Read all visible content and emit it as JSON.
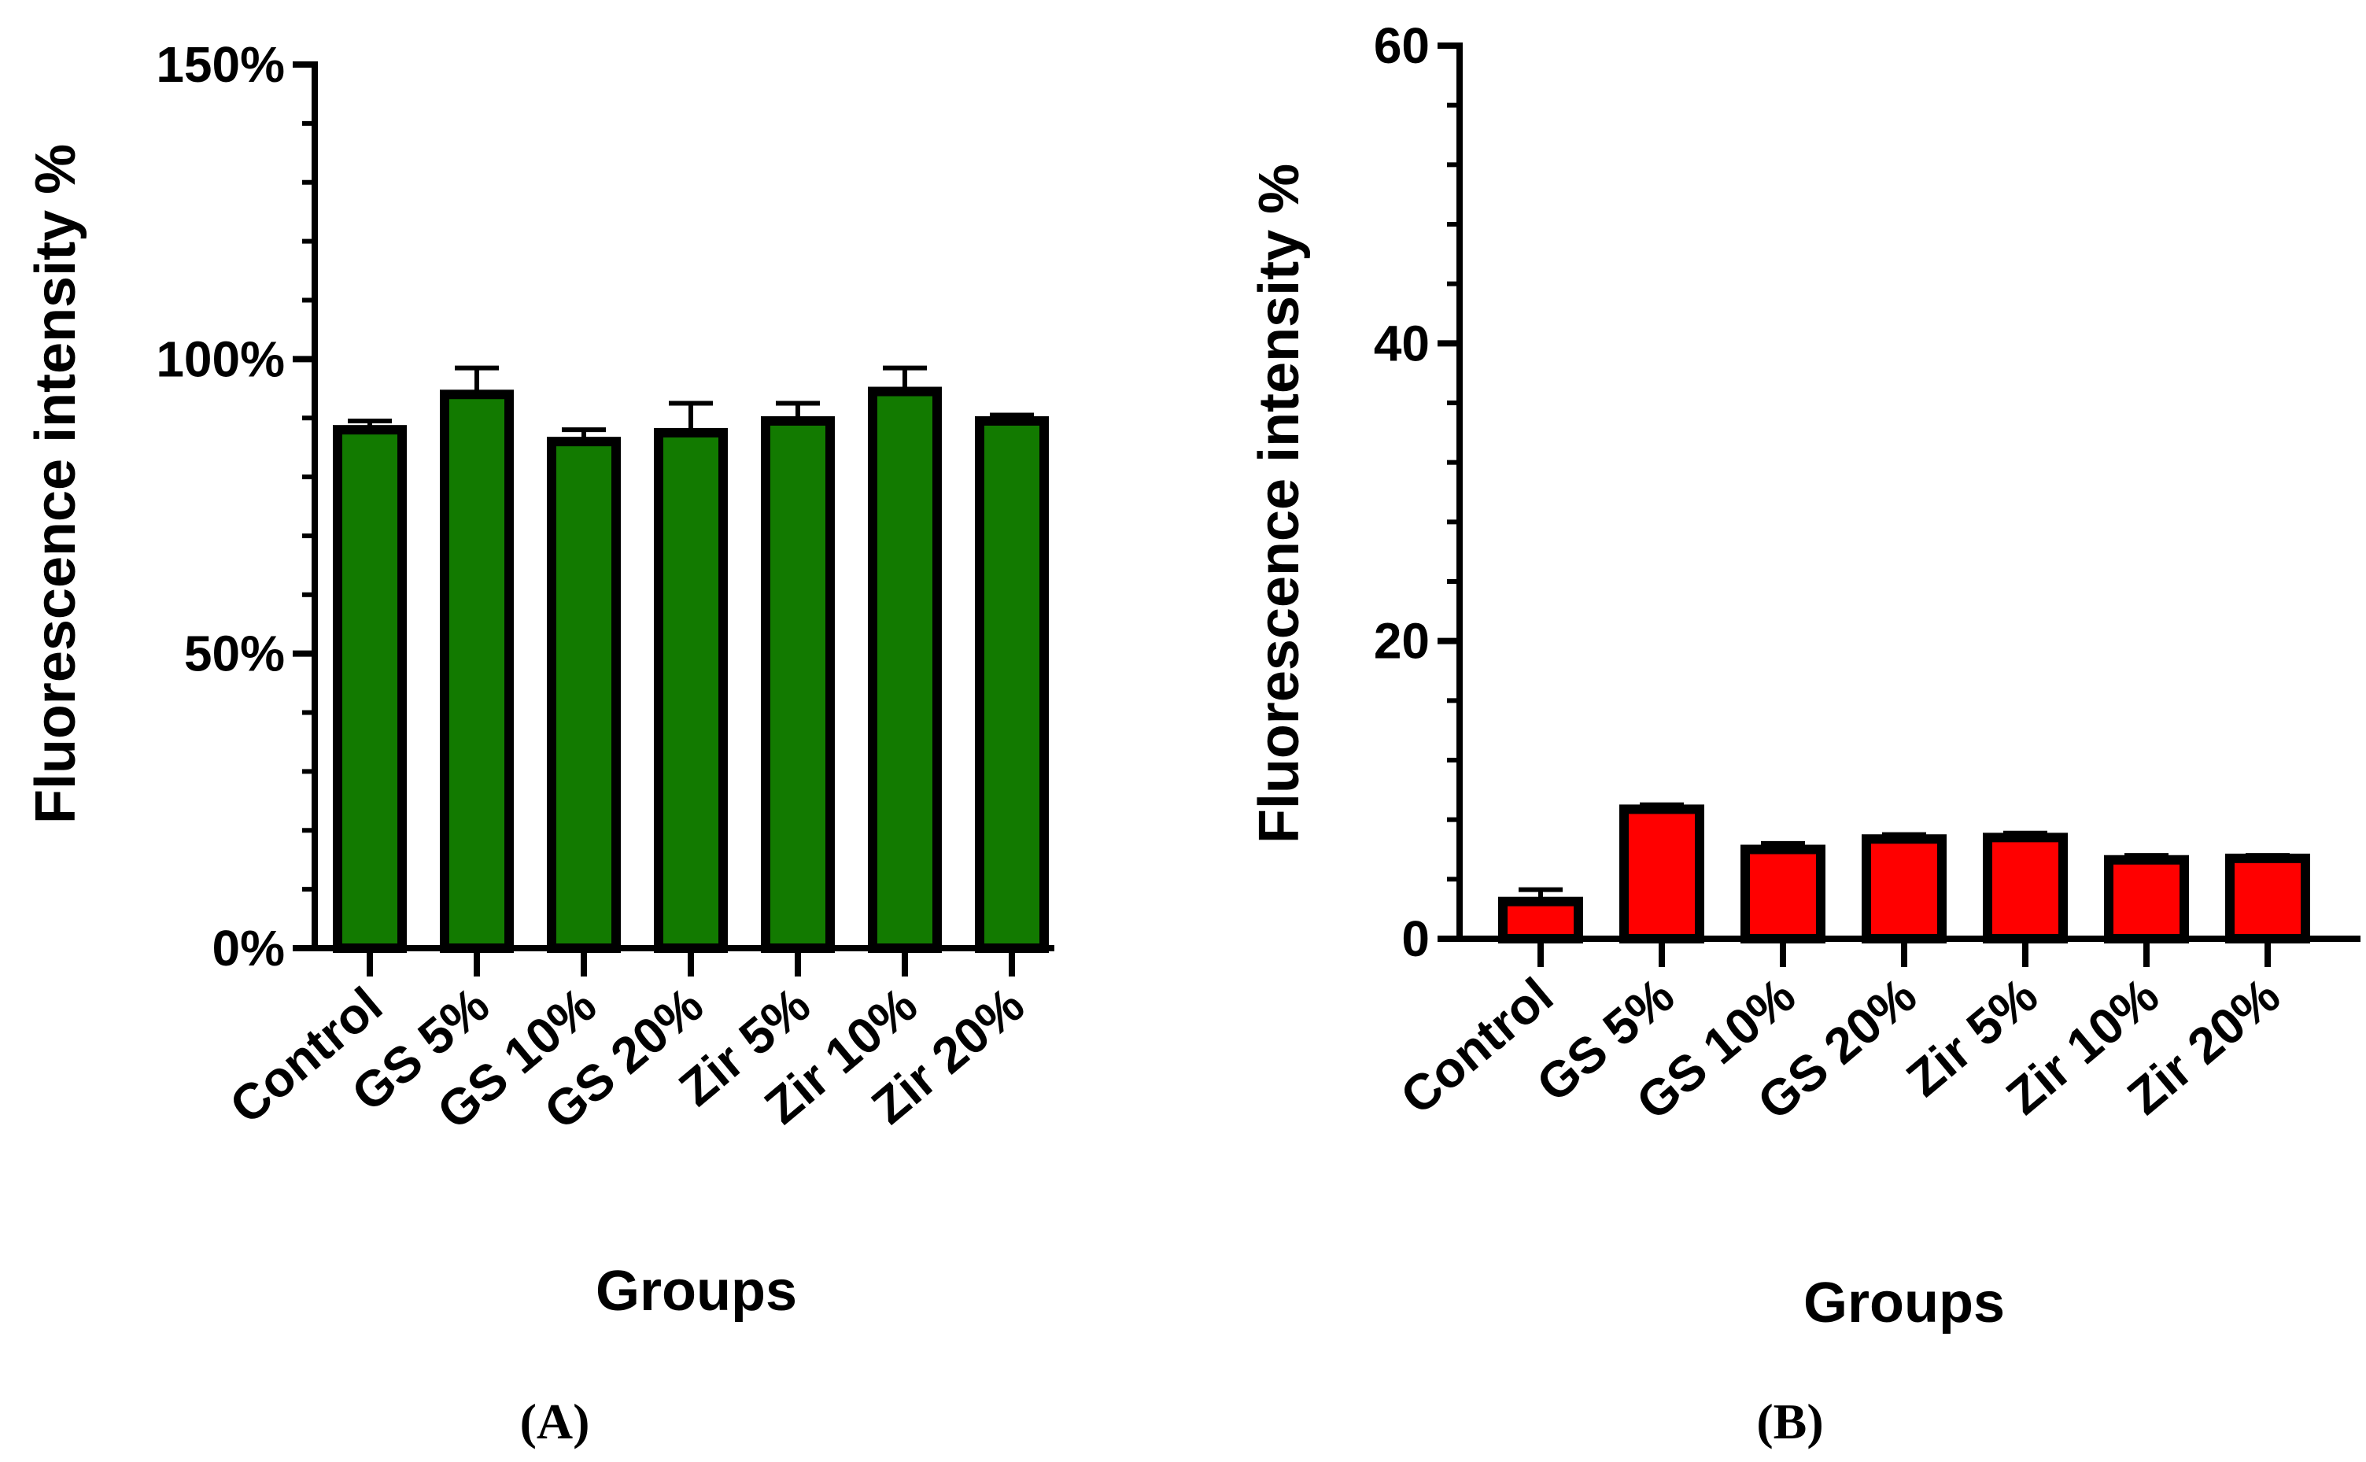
{
  "chart_data": [
    {
      "type": "bar",
      "panel_label": "(A)",
      "title": "",
      "xlabel": "Groups",
      "ylabel": "Fluorescence intensity %",
      "categories": [
        "Control",
        "GS 5%",
        "GS 10%",
        "GS 20%",
        "Zir 5%",
        "Zir 10%",
        "Zir 20%"
      ],
      "values": [
        88,
        94,
        86,
        87.5,
        89.5,
        94.5,
        89.5
      ],
      "errors": [
        1.5,
        4.5,
        2,
        5,
        3,
        4,
        1
      ],
      "ylim": [
        0,
        150
      ],
      "yticks": [
        0,
        50,
        100,
        150
      ],
      "yticklabels": [
        "0%",
        "50%",
        "100%",
        "150%"
      ],
      "bar_color": "#127a00",
      "edge_color": "#000000"
    },
    {
      "type": "bar",
      "panel_label": "(B)",
      "title": "",
      "xlabel": "Groups",
      "ylabel": "Fluorescence intensity %",
      "categories": [
        "Control",
        "GS 5%",
        "GS 10%",
        "GS 20%",
        "Zir 5%",
        "Zir 10%",
        "Zir 20%"
      ],
      "values": [
        2.5,
        8.7,
        6,
        6.7,
        6.8,
        5.3,
        5.4
      ],
      "errors": [
        0.8,
        0.3,
        0.4,
        0.3,
        0.3,
        0.3,
        0.2
      ],
      "ylim": [
        0,
        60
      ],
      "yticks": [
        0,
        20,
        40,
        60
      ],
      "yticklabels": [
        "0",
        "20",
        "40",
        "60"
      ],
      "bar_color": "#ff0000",
      "edge_color": "#000000"
    }
  ]
}
